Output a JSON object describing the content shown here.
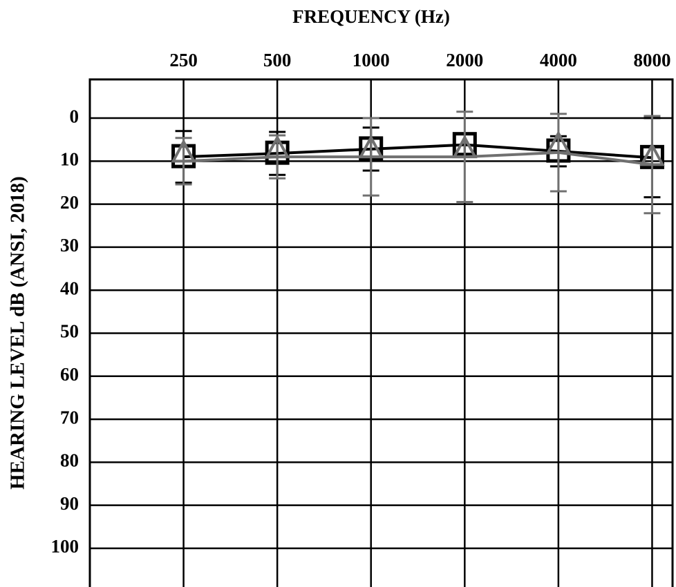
{
  "chart_data": {
    "type": "line",
    "title": "FREQUENCY (Hz)",
    "y_label": "HEARING LEVEL dB (ANSI, 2018)",
    "x": [
      250,
      500,
      1000,
      2000,
      4000,
      8000
    ],
    "xlim": [
      125,
      9400
    ],
    "xticks": [
      250,
      500,
      1000,
      2000,
      4000,
      8000
    ],
    "x_log": true,
    "ylim": [
      -9,
      109
    ],
    "yticks": [
      0,
      10,
      20,
      30,
      40,
      50,
      60,
      70,
      80,
      90,
      100
    ],
    "y_inverted": true,
    "grid": true,
    "series": [
      {
        "color": "#000000",
        "marker": "square",
        "values": [
          9,
          8.2,
          7.2,
          6.2,
          7.7,
          9.2
        ],
        "errors": [
          6,
          5,
          5,
          2.5,
          3.5,
          9.2
        ]
      },
      {
        "color": "#707070",
        "marker": "triangle",
        "values": [
          10,
          9,
          9,
          9,
          8,
          10.8
        ],
        "errors": [
          5.4,
          5,
          9,
          10.5,
          9,
          11.3
        ]
      }
    ]
  }
}
